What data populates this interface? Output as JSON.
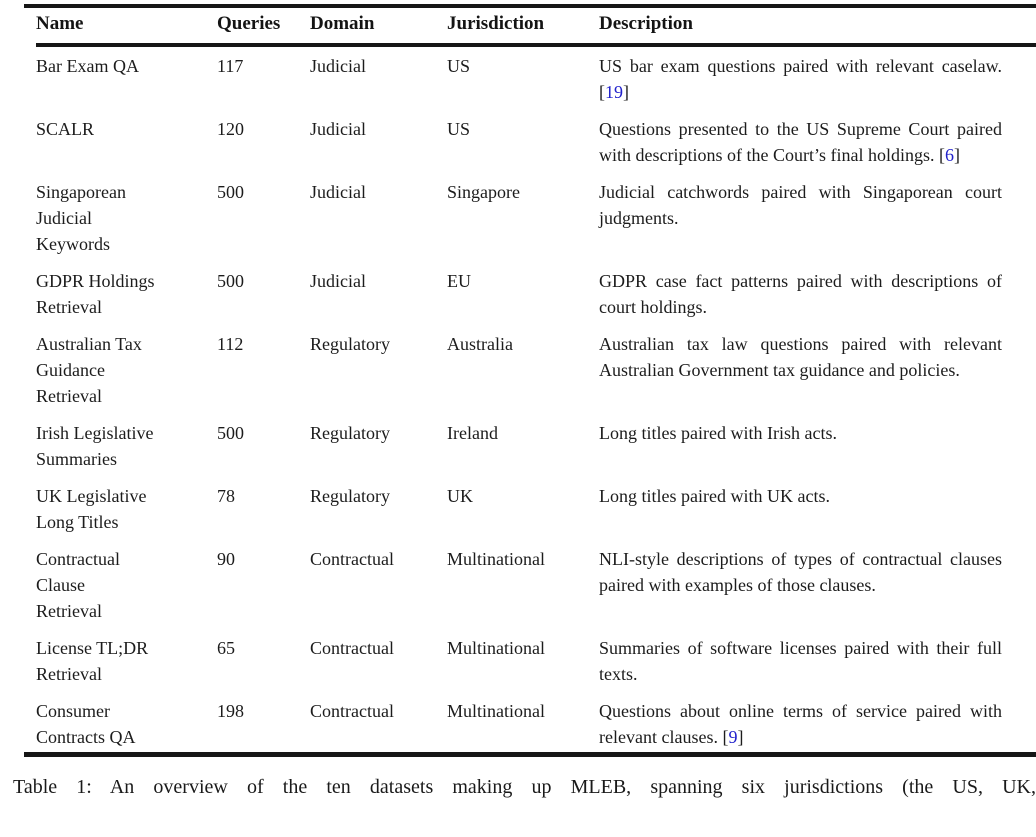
{
  "table": {
    "columns": [
      {
        "label": "Name"
      },
      {
        "label": "Queries"
      },
      {
        "label": "Domain"
      },
      {
        "label": "Jurisdiction"
      },
      {
        "label": "Description"
      }
    ],
    "citation_bracket_open": "[",
    "citation_bracket_close": "]",
    "rows": [
      {
        "name_lines": [
          "Bar Exam QA"
        ],
        "queries": "117",
        "domain": "Judicial",
        "jurisdiction": "US",
        "description": "US bar exam questions paired with relevant caselaw.",
        "citation": "19"
      },
      {
        "name_lines": [
          "SCALR"
        ],
        "queries": "120",
        "domain": "Judicial",
        "jurisdiction": "US",
        "description": "Questions presented to the US Supreme Court paired with descriptions of the Court’s final holdings.",
        "citation": "6"
      },
      {
        "name_lines": [
          "Singaporean",
          "Judicial",
          "Keywords"
        ],
        "queries": "500",
        "domain": "Judicial",
        "jurisdiction": "Singapore",
        "description": "Judicial catchwords paired with Singaporean court judgments.",
        "citation": null
      },
      {
        "name_lines": [
          "GDPR Holdings",
          "Retrieval"
        ],
        "queries": "500",
        "domain": "Judicial",
        "jurisdiction": "EU",
        "description": "GDPR case fact patterns paired with descriptions of court holdings.",
        "citation": null
      },
      {
        "name_lines": [
          "Australian Tax",
          "Guidance",
          "Retrieval"
        ],
        "queries": "112",
        "domain": "Regulatory",
        "jurisdiction": "Australia",
        "description": "Australian tax law questions paired with relevant Australian Government tax guidance and policies.",
        "citation": null
      },
      {
        "name_lines": [
          "Irish Legislative",
          "Summaries"
        ],
        "queries": "500",
        "domain": "Regulatory",
        "jurisdiction": "Ireland",
        "description": "Long titles paired with Irish acts.",
        "citation": null
      },
      {
        "name_lines": [
          "UK Legislative",
          "Long Titles"
        ],
        "queries": "78",
        "domain": "Regulatory",
        "jurisdiction": "UK",
        "description": "Long titles paired with UK acts.",
        "citation": null
      },
      {
        "name_lines": [
          "Contractual",
          "Clause",
          "Retrieval"
        ],
        "queries": "90",
        "domain": "Contractual",
        "jurisdiction": "Multinational",
        "description": "NLI-style descriptions of types of contractual clauses paired with examples of those clauses.",
        "citation": null
      },
      {
        "name_lines": [
          "License TL;DR",
          "Retrieval"
        ],
        "queries": "65",
        "domain": "Contractual",
        "jurisdiction": "Multinational",
        "description": "Summaries of software licenses paired with their full texts.",
        "citation": null
      },
      {
        "name_lines": [
          "Consumer",
          "Contracts QA"
        ],
        "queries": "198",
        "domain": "Contractual",
        "jurisdiction": "Multinational",
        "description": "Questions about online terms of service paired with relevant clauses.",
        "citation": "9"
      }
    ]
  },
  "caption": "Table 1: An overview of the ten datasets making up MLEB, spanning six jurisdictions (the US, UK,",
  "colors": {
    "text": "#1c1c1c",
    "rule": "#161616",
    "citation_link": "#2222cc"
  }
}
